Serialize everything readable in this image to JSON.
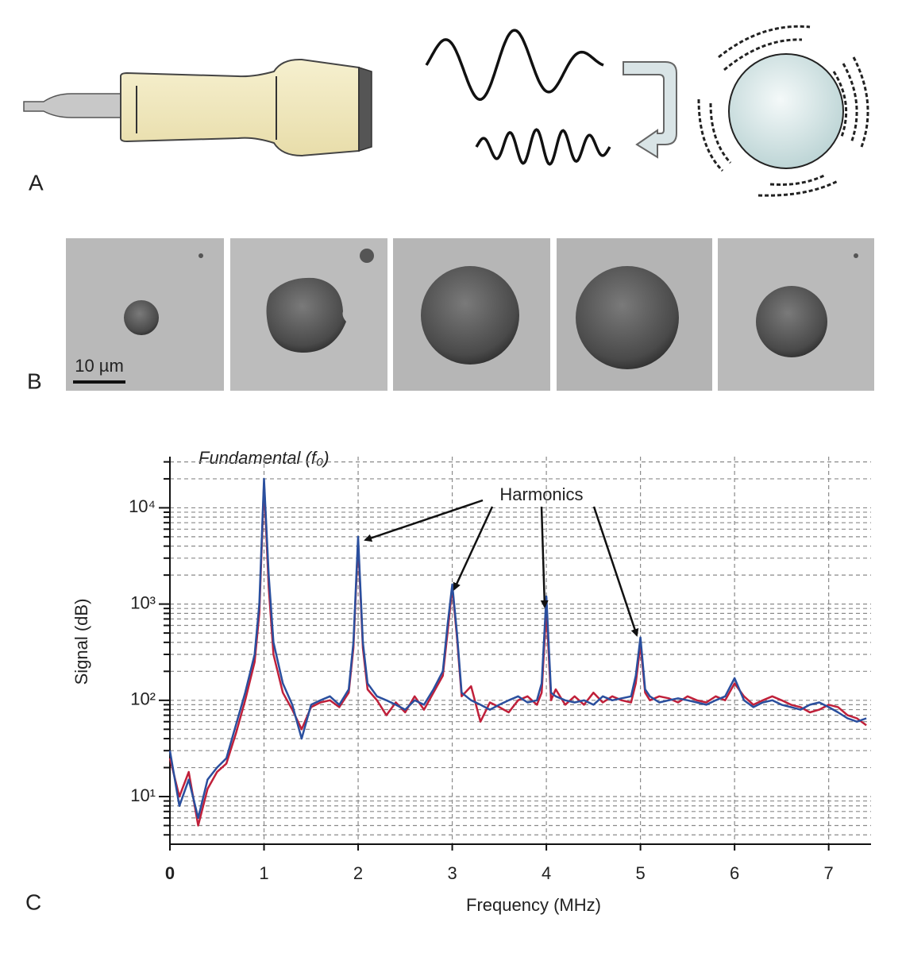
{
  "panels": {
    "a_label": "A",
    "b_label": "B",
    "c_label": "C"
  },
  "scale_bar": "10 µm",
  "chart_data": {
    "type": "line",
    "x_label": "Frequency (MHz)",
    "y_label": "Signal (dB)",
    "annotations": {
      "fundamental": "Fundamental (f₀)",
      "harmonics": "Harmonics"
    },
    "log_y": true,
    "grid": true,
    "xlim": [
      0,
      7.45
    ],
    "xticks": [
      0,
      1,
      2,
      3,
      4,
      5,
      6,
      7
    ],
    "ylim": [
      3.2,
      34000
    ],
    "yticks": [
      {
        "value": 10,
        "label": "10¹"
      },
      {
        "value": 100,
        "label": "10²"
      },
      {
        "value": 1000,
        "label": "10³"
      },
      {
        "value": 10000,
        "label": "10⁴"
      }
    ],
    "yminor": [
      4,
      5,
      6,
      7,
      8,
      9,
      20,
      30,
      40,
      50,
      60,
      70,
      80,
      90,
      200,
      300,
      400,
      500,
      600,
      700,
      800,
      900,
      2000,
      3000,
      4000,
      5000,
      6000,
      7000,
      8000,
      9000,
      20000,
      30000
    ],
    "x": [
      0,
      0.1,
      0.2,
      0.3,
      0.4,
      0.5,
      0.6,
      0.7,
      0.8,
      0.9,
      0.95,
      1.0,
      1.05,
      1.1,
      1.2,
      1.3,
      1.4,
      1.5,
      1.6,
      1.7,
      1.8,
      1.9,
      1.95,
      2.0,
      2.05,
      2.1,
      2.2,
      2.3,
      2.4,
      2.5,
      2.6,
      2.7,
      2.8,
      2.9,
      2.95,
      3.0,
      3.05,
      3.1,
      3.2,
      3.3,
      3.4,
      3.5,
      3.6,
      3.7,
      3.8,
      3.9,
      3.95,
      4.0,
      4.05,
      4.1,
      4.2,
      4.3,
      4.4,
      4.5,
      4.6,
      4.7,
      4.8,
      4.9,
      4.95,
      5.0,
      5.05,
      5.1,
      5.2,
      5.3,
      5.4,
      5.5,
      5.6,
      5.7,
      5.8,
      5.9,
      6.0,
      6.1,
      6.2,
      6.3,
      6.4,
      6.5,
      6.6,
      6.7,
      6.8,
      6.9,
      7.0,
      7.1,
      7.2,
      7.3,
      7.4
    ],
    "series": [
      {
        "color": "#c0203a",
        "values": [
          25,
          10,
          18,
          5,
          12,
          18,
          22,
          45,
          100,
          250,
          800,
          18000,
          1500,
          300,
          120,
          80,
          50,
          85,
          95,
          100,
          85,
          120,
          350,
          4500,
          350,
          130,
          100,
          70,
          95,
          75,
          110,
          80,
          120,
          180,
          500,
          1500,
          450,
          110,
          140,
          60,
          95,
          85,
          75,
          100,
          110,
          90,
          120,
          900,
          100,
          130,
          90,
          110,
          90,
          120,
          95,
          110,
          100,
          95,
          150,
          380,
          120,
          100,
          110,
          105,
          95,
          110,
          100,
          95,
          110,
          100,
          150,
          110,
          90,
          100,
          110,
          100,
          90,
          85,
          75,
          80,
          90,
          85,
          70,
          65,
          55
        ]
      },
      {
        "color": "#2a4f9e",
        "values": [
          30,
          8,
          15,
          6,
          15,
          20,
          25,
          55,
          120,
          300,
          1000,
          20000,
          2000,
          400,
          150,
          90,
          40,
          90,
          100,
          110,
          90,
          130,
          400,
          5000,
          400,
          150,
          110,
          100,
          90,
          80,
          100,
          90,
          130,
          200,
          600,
          1600,
          500,
          120,
          100,
          90,
          80,
          90,
          100,
          110,
          95,
          100,
          150,
          1200,
          120,
          110,
          100,
          95,
          100,
          90,
          110,
          100,
          105,
          110,
          180,
          450,
          130,
          110,
          95,
          100,
          105,
          100,
          95,
          90,
          100,
          110,
          170,
          100,
          85,
          95,
          100,
          90,
          85,
          80,
          90,
          95,
          85,
          75,
          65,
          60,
          65
        ]
      }
    ]
  }
}
